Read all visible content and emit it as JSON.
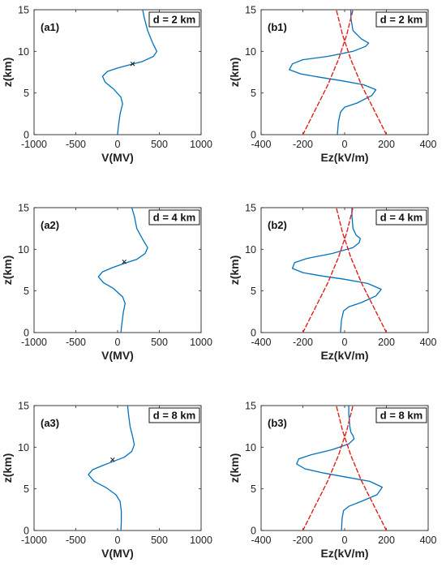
{
  "colors": {
    "profile": "#0072BD",
    "envelope": "#E0201B",
    "axis": "#262626",
    "marker": "#111111"
  },
  "chart_data": [
    {
      "id": "a1",
      "type": "line",
      "panel_label": "(a1)",
      "distance_label": "d = 2 km",
      "xlabel": "V(MV)",
      "ylabel": "z(km)",
      "xlim": [
        -1000,
        1000
      ],
      "ylim": [
        0,
        15
      ],
      "xticks": [
        "-1000",
        "-500",
        "0",
        "500",
        "1000"
      ],
      "yticks": [
        "0",
        "5",
        "10",
        "15"
      ],
      "grid": false,
      "legend": "none",
      "series": [
        {
          "style": "solid",
          "color": "#0072BD",
          "x": [
            0,
            10,
            30,
            60,
            40,
            -50,
            -150,
            -180,
            -120,
            0,
            150,
            300,
            430,
            470,
            420,
            360,
            320,
            300
          ],
          "y": [
            0,
            1,
            2.5,
            3.7,
            4.5,
            5.5,
            6.3,
            7,
            7.6,
            8,
            8.4,
            8.8,
            9.4,
            10,
            11,
            12.5,
            14,
            15
          ]
        }
      ],
      "markers": [
        {
          "x": 180,
          "y": 8.5,
          "symbol": "x"
        }
      ]
    },
    {
      "id": "b1",
      "type": "line",
      "panel_label": "(b1)",
      "distance_label": "d = 2 km",
      "xlabel": "Ez(kV/m)",
      "ylabel": "z(km)",
      "xlim": [
        -400,
        400
      ],
      "ylim": [
        0,
        15
      ],
      "xticks": [
        "-400",
        "-200",
        "0",
        "200",
        "400"
      ],
      "yticks": [
        "0",
        "5",
        "10",
        "15"
      ],
      "grid": false,
      "legend": "none",
      "series": [
        {
          "style": "solid",
          "color": "#0072BD",
          "x": [
            -35,
            -30,
            -20,
            0,
            60,
            130,
            150,
            90,
            -20,
            -120,
            -210,
            -265,
            -250,
            -200,
            -80,
            40,
            100,
            115,
            80,
            40,
            30,
            30
          ],
          "y": [
            0,
            1.5,
            2.7,
            3.3,
            3.8,
            4.7,
            5.4,
            6,
            6.5,
            6.9,
            7.3,
            7.8,
            8.5,
            9,
            9.4,
            10,
            10.6,
            11,
            11.5,
            12.5,
            14,
            15
          ]
        },
        {
          "style": "dashed",
          "color": "#E0201B",
          "x": [
            -200,
            -170,
            -140,
            -110,
            -80,
            -55,
            -30,
            -10,
            10,
            25,
            40
          ],
          "y": [
            0,
            1.5,
            3,
            4.5,
            6,
            7.5,
            9,
            10.5,
            12,
            13.5,
            15
          ]
        },
        {
          "style": "dashed",
          "color": "#E0201B",
          "x": [
            200,
            170,
            140,
            110,
            80,
            55,
            30,
            10,
            -10,
            -25,
            -40
          ],
          "y": [
            0,
            1.5,
            3,
            4.5,
            6,
            7.5,
            9,
            10.5,
            12,
            13.5,
            15
          ]
        }
      ],
      "markers": []
    },
    {
      "id": "a2",
      "type": "line",
      "panel_label": "(a2)",
      "distance_label": "d = 4 km",
      "xlabel": "V(MV)",
      "ylabel": "z(km)",
      "xlim": [
        -1000,
        1000
      ],
      "ylim": [
        0,
        15
      ],
      "xticks": [
        "-1000",
        "-500",
        "0",
        "500",
        "1000"
      ],
      "yticks": [
        "0",
        "5",
        "10",
        "15"
      ],
      "grid": false,
      "legend": "none",
      "series": [
        {
          "style": "solid",
          "color": "#0072BD",
          "x": [
            40,
            50,
            70,
            90,
            60,
            -50,
            -170,
            -230,
            -180,
            -60,
            80,
            230,
            330,
            360,
            300,
            230,
            200,
            170
          ],
          "y": [
            0,
            1,
            2.5,
            3.5,
            4.3,
            5.3,
            6,
            6.7,
            7.3,
            7.8,
            8.3,
            8.8,
            9.5,
            10.2,
            11.2,
            12.5,
            14,
            15
          ]
        }
      ],
      "markers": [
        {
          "x": 80,
          "y": 8.5,
          "symbol": "x"
        }
      ]
    },
    {
      "id": "b2",
      "type": "line",
      "panel_label": "(b2)",
      "distance_label": "d = 4 km",
      "xlabel": "Ez(kV/m)",
      "ylabel": "z(km)",
      "xlim": [
        -400,
        400
      ],
      "ylim": [
        0,
        15
      ],
      "xticks": [
        "-400",
        "-200",
        "0",
        "200",
        "400"
      ],
      "yticks": [
        "0",
        "5",
        "10",
        "15"
      ],
      "grid": false,
      "legend": "none",
      "series": [
        {
          "style": "solid",
          "color": "#0072BD",
          "x": [
            -20,
            -15,
            -5,
            20,
            80,
            150,
            175,
            110,
            0,
            -110,
            -200,
            -250,
            -240,
            -180,
            -60,
            40,
            70,
            75,
            55,
            40,
            35,
            35
          ],
          "y": [
            0,
            1.5,
            2.6,
            3.1,
            3.6,
            4.4,
            5.2,
            5.9,
            6.4,
            6.8,
            7.2,
            7.7,
            8.4,
            8.9,
            9.5,
            10.2,
            10.8,
            11.3,
            11.7,
            12.5,
            14,
            15
          ]
        },
        {
          "style": "dashed",
          "color": "#E0201B",
          "x": [
            -200,
            -170,
            -140,
            -110,
            -80,
            -55,
            -30,
            -10,
            10,
            25,
            40
          ],
          "y": [
            0,
            1.5,
            3,
            4.5,
            6,
            7.5,
            9,
            10.5,
            12,
            13.5,
            15
          ]
        },
        {
          "style": "dashed",
          "color": "#E0201B",
          "x": [
            200,
            170,
            140,
            110,
            80,
            55,
            30,
            10,
            -10,
            -25,
            -40
          ],
          "y": [
            0,
            1.5,
            3,
            4.5,
            6,
            7.5,
            9,
            10.5,
            12,
            13.5,
            15
          ]
        }
      ],
      "markers": []
    },
    {
      "id": "a3",
      "type": "line",
      "panel_label": "(a3)",
      "distance_label": "d = 8 km",
      "xlabel": "V(MV)",
      "ylabel": "z(km)",
      "xlim": [
        -1000,
        1000
      ],
      "ylim": [
        0,
        15
      ],
      "xticks": [
        "-1000",
        "-500",
        "0",
        "500",
        "1000"
      ],
      "yticks": [
        "0",
        "5",
        "10",
        "15"
      ],
      "grid": false,
      "legend": "none",
      "series": [
        {
          "style": "solid",
          "color": "#0072BD",
          "x": [
            40,
            45,
            45,
            30,
            -20,
            -130,
            -280,
            -350,
            -300,
            -180,
            -50,
            80,
            170,
            200,
            180,
            150,
            130,
            120
          ],
          "y": [
            0,
            1,
            2.3,
            3.5,
            4.3,
            5.1,
            5.9,
            6.7,
            7.3,
            7.8,
            8.3,
            8.8,
            9.5,
            10.3,
            11.3,
            12.5,
            14,
            15
          ]
        }
      ],
      "markers": [
        {
          "x": -60,
          "y": 8.5,
          "symbol": "x"
        }
      ]
    },
    {
      "id": "b3",
      "type": "line",
      "panel_label": "(b3)",
      "distance_label": "d = 8 km",
      "xlabel": "Ez(kV/m)",
      "ylabel": "z(km)",
      "xlim": [
        -400,
        400
      ],
      "ylim": [
        0,
        15
      ],
      "xticks": [
        "-400",
        "-200",
        "0",
        "200",
        "400"
      ],
      "yticks": [
        "0",
        "5",
        "10",
        "15"
      ],
      "grid": false,
      "legend": "none",
      "series": [
        {
          "style": "solid",
          "color": "#0072BD",
          "x": [
            -15,
            -12,
            -5,
            20,
            80,
            155,
            180,
            120,
            10,
            -100,
            -190,
            -230,
            -220,
            -160,
            -60,
            20,
            45,
            40,
            30,
            25,
            20,
            20
          ],
          "y": [
            0,
            1.5,
            2.4,
            2.9,
            3.5,
            4.3,
            5.2,
            5.9,
            6.4,
            6.9,
            7.4,
            8,
            8.6,
            9.1,
            9.7,
            10.4,
            11,
            11.4,
            11.8,
            12.5,
            14,
            15
          ]
        },
        {
          "style": "dashed",
          "color": "#E0201B",
          "x": [
            -200,
            -170,
            -140,
            -110,
            -80,
            -55,
            -30,
            -10,
            10,
            25,
            40
          ],
          "y": [
            0,
            1.5,
            3,
            4.5,
            6,
            7.5,
            9,
            10.5,
            12,
            13.5,
            15
          ]
        },
        {
          "style": "dashed",
          "color": "#E0201B",
          "x": [
            200,
            170,
            140,
            110,
            80,
            55,
            30,
            10,
            -10,
            -25,
            -40
          ],
          "y": [
            0,
            1.5,
            3,
            4.5,
            6,
            7.5,
            9,
            10.5,
            12,
            13.5,
            15
          ]
        }
      ],
      "markers": []
    }
  ]
}
